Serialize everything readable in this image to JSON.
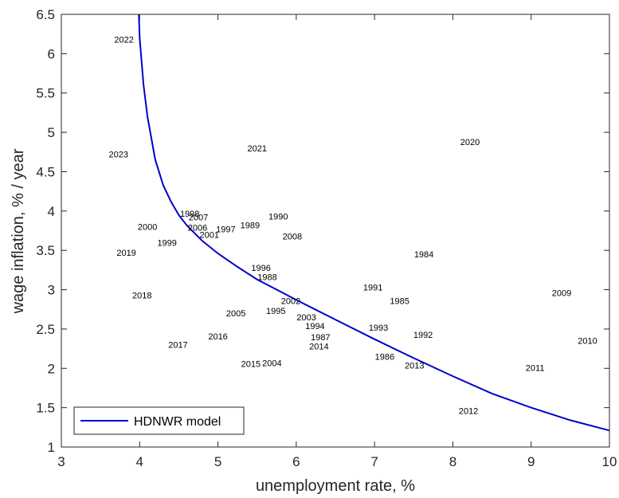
{
  "chart_data": {
    "type": "scatter",
    "title": "",
    "xlabel": "unemployment rate, %",
    "ylabel": "wage inflation, % / year",
    "xlim": [
      3,
      10
    ],
    "ylim": [
      1,
      6.5
    ],
    "x_ticks": [
      "3",
      "4",
      "5",
      "6",
      "7",
      "8",
      "9",
      "10"
    ],
    "y_ticks": [
      "1",
      "1.5",
      "2",
      "2.5",
      "3",
      "3.5",
      "4",
      "4.5",
      "5",
      "5.5",
      "6",
      "6.5"
    ],
    "grid": false,
    "legend": {
      "position": "bottom-left",
      "entries": [
        "HDNWR model"
      ]
    },
    "series": [
      {
        "name": "HDNWR model",
        "kind": "line",
        "color": "#0000cc",
        "x": [
          3.99,
          4.0,
          4.05,
          4.1,
          4.2,
          4.3,
          4.4,
          4.5,
          4.6,
          4.8,
          5.0,
          5.25,
          5.5,
          5.75,
          6.0,
          6.5,
          7.0,
          7.5,
          8.0,
          8.5,
          9.0,
          9.5,
          10.0
        ],
        "y": [
          6.5,
          6.2,
          5.6,
          5.2,
          4.65,
          4.33,
          4.12,
          3.95,
          3.82,
          3.62,
          3.46,
          3.29,
          3.13,
          3.0,
          2.87,
          2.62,
          2.37,
          2.13,
          1.9,
          1.68,
          1.5,
          1.34,
          1.21
        ]
      }
    ],
    "points": [
      {
        "label": "2022",
        "x": 3.8,
        "y": 6.18
      },
      {
        "label": "2023",
        "x": 3.73,
        "y": 4.72
      },
      {
        "label": "2021",
        "x": 5.5,
        "y": 4.8
      },
      {
        "label": "2020",
        "x": 8.22,
        "y": 4.88
      },
      {
        "label": "1998",
        "x": 4.64,
        "y": 3.97
      },
      {
        "label": "2007",
        "x": 4.75,
        "y": 3.92
      },
      {
        "label": "1990",
        "x": 5.77,
        "y": 3.93
      },
      {
        "label": "1989",
        "x": 5.41,
        "y": 3.82
      },
      {
        "label": "2000",
        "x": 4.1,
        "y": 3.8
      },
      {
        "label": "2006",
        "x": 4.74,
        "y": 3.79
      },
      {
        "label": "1997",
        "x": 5.1,
        "y": 3.77
      },
      {
        "label": "2001",
        "x": 4.89,
        "y": 3.7
      },
      {
        "label": "2008",
        "x": 5.95,
        "y": 3.68
      },
      {
        "label": "1999",
        "x": 4.35,
        "y": 3.6
      },
      {
        "label": "2019",
        "x": 3.83,
        "y": 3.47
      },
      {
        "label": "1984",
        "x": 7.63,
        "y": 3.45
      },
      {
        "label": "1996",
        "x": 5.55,
        "y": 3.28
      },
      {
        "label": "1988",
        "x": 5.63,
        "y": 3.16
      },
      {
        "label": "1991",
        "x": 6.98,
        "y": 3.03
      },
      {
        "label": "2009",
        "x": 9.39,
        "y": 2.96
      },
      {
        "label": "2018",
        "x": 4.03,
        "y": 2.93
      },
      {
        "label": "2002",
        "x": 5.93,
        "y": 2.86
      },
      {
        "label": "1985",
        "x": 7.32,
        "y": 2.86
      },
      {
        "label": "1995",
        "x": 5.74,
        "y": 2.73
      },
      {
        "label": "2005",
        "x": 5.23,
        "y": 2.7
      },
      {
        "label": "2003",
        "x": 6.13,
        "y": 2.65
      },
      {
        "label": "1994",
        "x": 6.24,
        "y": 2.54
      },
      {
        "label": "1993",
        "x": 7.05,
        "y": 2.52
      },
      {
        "label": "1992",
        "x": 7.62,
        "y": 2.43
      },
      {
        "label": "1987",
        "x": 6.31,
        "y": 2.4
      },
      {
        "label": "2016",
        "x": 5.0,
        "y": 2.41
      },
      {
        "label": "2010",
        "x": 9.72,
        "y": 2.35
      },
      {
        "label": "2017",
        "x": 4.49,
        "y": 2.3
      },
      {
        "label": "2014",
        "x": 6.29,
        "y": 2.28
      },
      {
        "label": "1986",
        "x": 7.13,
        "y": 2.15
      },
      {
        "label": "2015",
        "x": 5.42,
        "y": 2.06
      },
      {
        "label": "2004",
        "x": 5.69,
        "y": 2.07
      },
      {
        "label": "2013",
        "x": 7.51,
        "y": 2.04
      },
      {
        "label": "2011",
        "x": 9.05,
        "y": 2.01
      },
      {
        "label": "2012",
        "x": 8.2,
        "y": 1.46
      }
    ]
  }
}
